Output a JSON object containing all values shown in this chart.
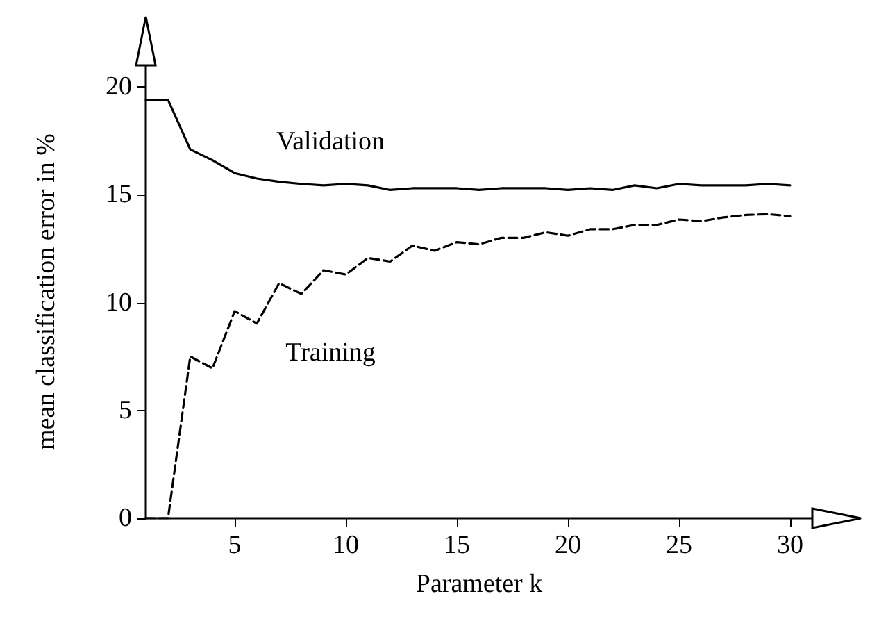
{
  "chart_data": {
    "type": "line",
    "xlabel": "Parameter k",
    "ylabel": "mean classification error in %",
    "x": [
      1,
      2,
      3,
      4,
      5,
      6,
      7,
      8,
      9,
      10,
      11,
      12,
      13,
      14,
      15,
      16,
      17,
      18,
      19,
      20,
      21,
      22,
      23,
      24,
      25,
      26,
      27,
      28,
      29,
      30
    ],
    "xlim": [
      1,
      31
    ],
    "xticks": [
      5,
      10,
      15,
      20,
      25,
      30
    ],
    "ylim": [
      0,
      21
    ],
    "yticks": [
      0,
      5,
      10,
      15,
      20
    ],
    "legend": false,
    "grid": false,
    "marker": "none",
    "series": [
      {
        "name": "Validation",
        "color": "#000000",
        "line_style": "solid",
        "values": [
          19.4,
          19.4,
          17.1,
          16.6,
          16.0,
          15.75,
          15.6,
          15.5,
          15.43,
          15.5,
          15.43,
          15.22,
          15.3,
          15.3,
          15.3,
          15.22,
          15.3,
          15.3,
          15.3,
          15.22,
          15.3,
          15.22,
          15.43,
          15.3,
          15.5,
          15.43,
          15.43,
          15.43,
          15.5,
          15.43
        ]
      },
      {
        "name": "Training",
        "color": "#000000",
        "line_style": "dashed",
        "values": [
          0,
          0,
          7.5,
          6.95,
          9.6,
          9.03,
          10.9,
          10.4,
          11.5,
          11.3,
          12.07,
          11.9,
          12.64,
          12.4,
          12.8,
          12.7,
          13.0,
          13.0,
          13.26,
          13.1,
          13.4,
          13.4,
          13.6,
          13.6,
          13.85,
          13.77,
          13.95,
          14.06,
          14.1,
          14.0
        ]
      }
    ]
  }
}
